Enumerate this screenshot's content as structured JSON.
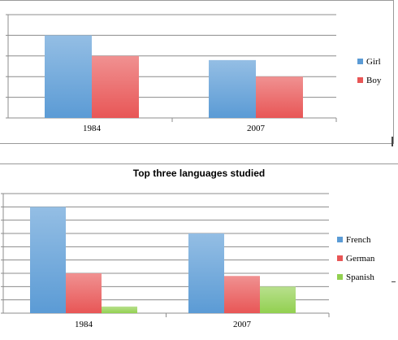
{
  "chart_data": [
    {
      "type": "bar",
      "title": "",
      "categories": [
        "1984",
        "2007"
      ],
      "series": [
        {
          "name": "Girl",
          "values": [
            4,
            2.8
          ],
          "color": "#5b9bd5"
        },
        {
          "name": "Boy",
          "values": [
            3,
            2
          ],
          "color": "#e85656"
        }
      ],
      "ylim": [
        0,
        5
      ],
      "grid": true,
      "legend": "right",
      "y_tick_labels": "cropped"
    },
    {
      "type": "bar",
      "title": "Top three languages studied",
      "categories": [
        "1984",
        "2007"
      ],
      "series": [
        {
          "name": "French",
          "values": [
            8,
            6
          ],
          "color": "#5b9bd5"
        },
        {
          "name": "German",
          "values": [
            3,
            2.8
          ],
          "color": "#e85656"
        },
        {
          "name": "Spanish",
          "values": [
            0.5,
            2
          ],
          "color": "#92d050"
        }
      ],
      "ylim": [
        0,
        9
      ],
      "grid": true,
      "legend": "right",
      "y_tick_labels": "cropped"
    }
  ]
}
